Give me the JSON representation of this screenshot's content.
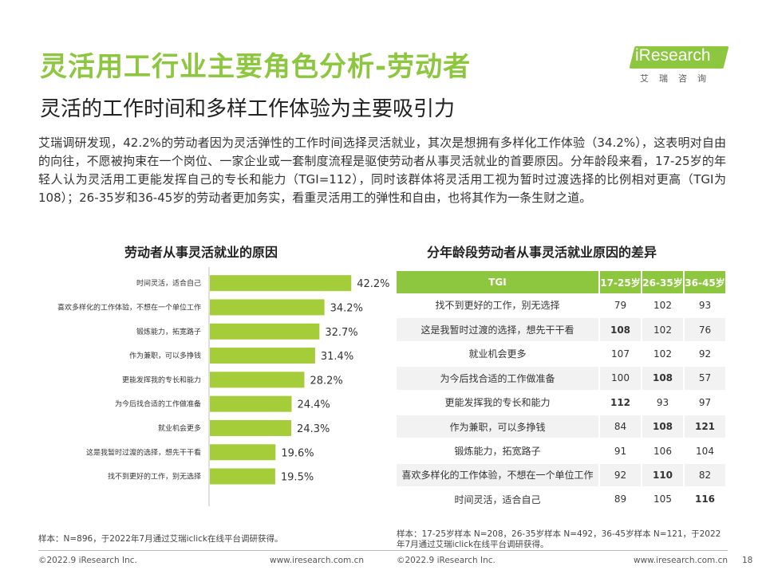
{
  "header": {
    "title": "灵活用工行业主要角色分析-劳动者",
    "subtitle": "灵活的工作时间和多样工作体验为主要吸引力",
    "logo_text": "iResearch",
    "logo_cn": "艾瑞咨询"
  },
  "intro_text": "艾瑞调研发现，42.2%的劳动者因为灵活弹性的工作时间选择灵活就业，其次是想拥有多样化工作体验（34.2%），这表明对自由的向往，不愿被拘束在一个岗位、一家企业或一套制度流程是驱使劳动者从事灵活就业的首要原因。分年龄段来看，17-25岁的年轻人认为灵活用工更能发挥自己的专长和能力（TGI=112），同时该群体将灵活用工视为暂时过渡选择的比例相对更高（TGI为108）；26-35岁和36-45岁的劳动者更加务实，看重灵活用工的弹性和自由，也将其作为一条生财之道。",
  "bar_chart_title": "劳动者从事灵活就业的原因",
  "table_title": "分年龄段劳动者从事灵活就业原因的差异",
  "chart_data": [
    {
      "type": "bar",
      "orientation": "horizontal",
      "title": "劳动者从事灵活就业的原因",
      "categories": [
        "时间灵活，适合自己",
        "喜欢多样化的工作体验，不想在一个单位工作",
        "锻炼能力，拓宽路子",
        "作为兼职，可以多挣钱",
        "更能发挥我的专长和能力",
        "为今后找合适的工作做准备",
        "就业机会更多",
        "这是我暂时过渡的选择，想先干干看",
        "找不到更好的工作，别无选择"
      ],
      "values": [
        42.2,
        34.2,
        32.7,
        31.4,
        28.2,
        24.4,
        24.3,
        19.6,
        19.5
      ],
      "value_labels": [
        "42.2%",
        "34.2%",
        "32.7%",
        "31.4%",
        "28.2%",
        "24.4%",
        "24.3%",
        "19.6%",
        "19.5%"
      ],
      "unit": "%",
      "bar_color": "#a5cd39"
    },
    {
      "type": "table",
      "title": "分年龄段劳动者从事灵活就业原因的差异",
      "columns": [
        "TGI",
        "17-25岁",
        "26-35岁",
        "36-45岁"
      ],
      "rows": [
        {
          "label": "找不到更好的工作，别无选择",
          "values": [
            "79",
            "102",
            "93"
          ],
          "bold": [
            false,
            false,
            false
          ]
        },
        {
          "label": "这是我暂时过渡的选择，想先干干看",
          "values": [
            "108",
            "102",
            "76"
          ],
          "bold": [
            true,
            false,
            false
          ]
        },
        {
          "label": "就业机会更多",
          "values": [
            "107",
            "102",
            "92"
          ],
          "bold": [
            false,
            false,
            false
          ]
        },
        {
          "label": "为今后找合适的工作做准备",
          "values": [
            "100",
            "108",
            "57"
          ],
          "bold": [
            false,
            true,
            false
          ]
        },
        {
          "label": "更能发挥我的专长和能力",
          "values": [
            "112",
            "93",
            "97"
          ],
          "bold": [
            true,
            false,
            false
          ]
        },
        {
          "label": "作为兼职，可以多挣钱",
          "values": [
            "84",
            "108",
            "121"
          ],
          "bold": [
            false,
            true,
            true
          ]
        },
        {
          "label": "锻炼能力，拓宽路子",
          "values": [
            "91",
            "106",
            "104"
          ],
          "bold": [
            false,
            false,
            false
          ]
        },
        {
          "label": "喜欢多样化的工作体验，不想在一个单位工作",
          "values": [
            "92",
            "110",
            "82"
          ],
          "bold": [
            false,
            true,
            false
          ]
        },
        {
          "label": "时间灵活，适合自己",
          "values": [
            "89",
            "105",
            "116"
          ],
          "bold": [
            false,
            false,
            true
          ]
        }
      ]
    }
  ],
  "notes": {
    "left": "样本：N=896，于2022年7月通过艾瑞iclick在线平台调研获得。",
    "right_line1": "样本：17-25岁样本 N=208，26-35岁样本 N=492，36-45岁样本 N=121，于2022",
    "right_line2": "年7月通过艾瑞iclick在线平台调研获得。"
  },
  "footer": {
    "copyright_left": "©2022.9 iResearch Inc.",
    "url_left": "www.iresearch.com.cn",
    "copyright_right": "©2022.9 iResearch Inc.",
    "url_right": "www.iresearch.com.cn",
    "page_number": "18"
  }
}
